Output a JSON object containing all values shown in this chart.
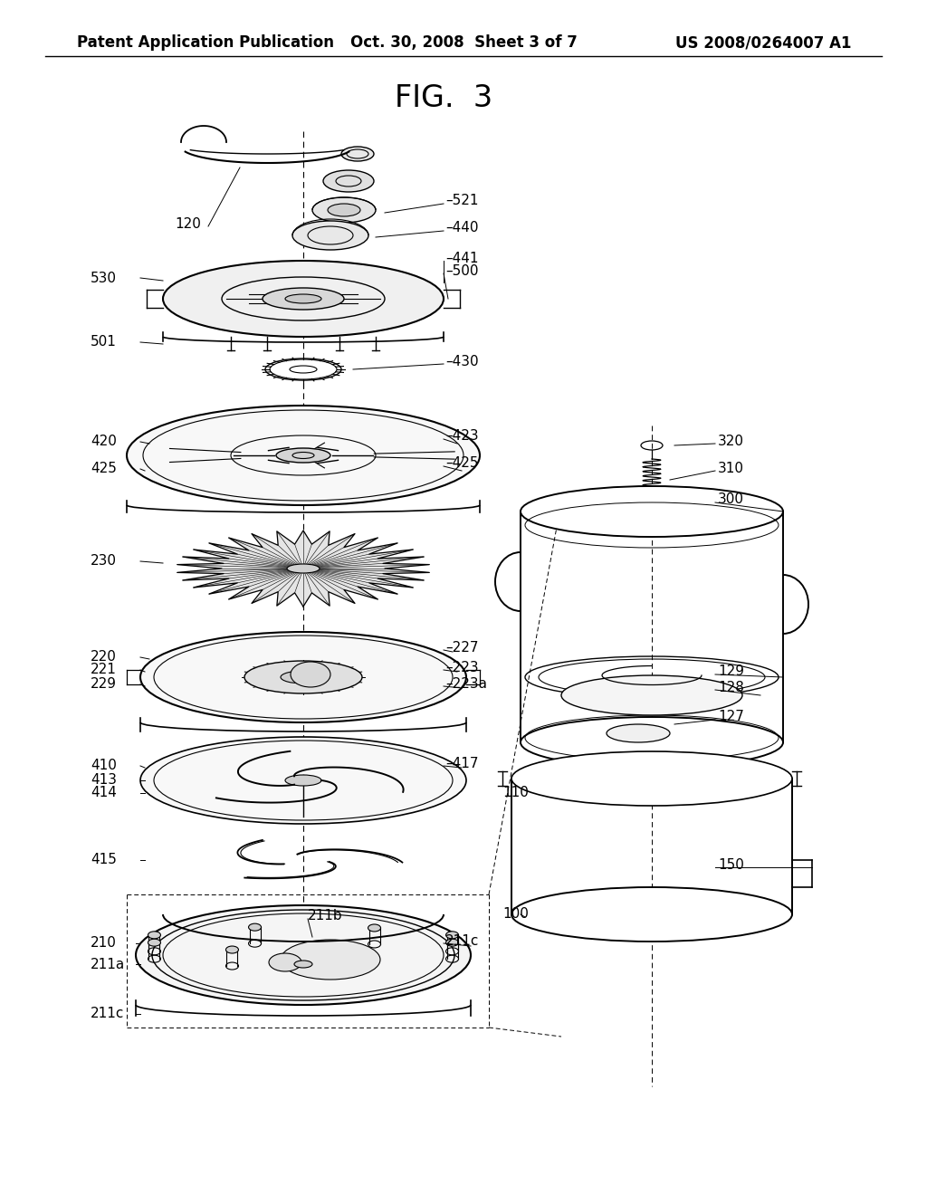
{
  "header_left": "Patent Application Publication",
  "header_center": "Oct. 30, 2008  Sheet 3 of 7",
  "header_right": "US 2008/0264007 A1",
  "figure_title": "FIG.  3",
  "bg_color": "#ffffff",
  "line_color": "#000000",
  "text_color": "#000000",
  "header_font_size": 12,
  "title_font_size": 24,
  "label_font_size": 11
}
